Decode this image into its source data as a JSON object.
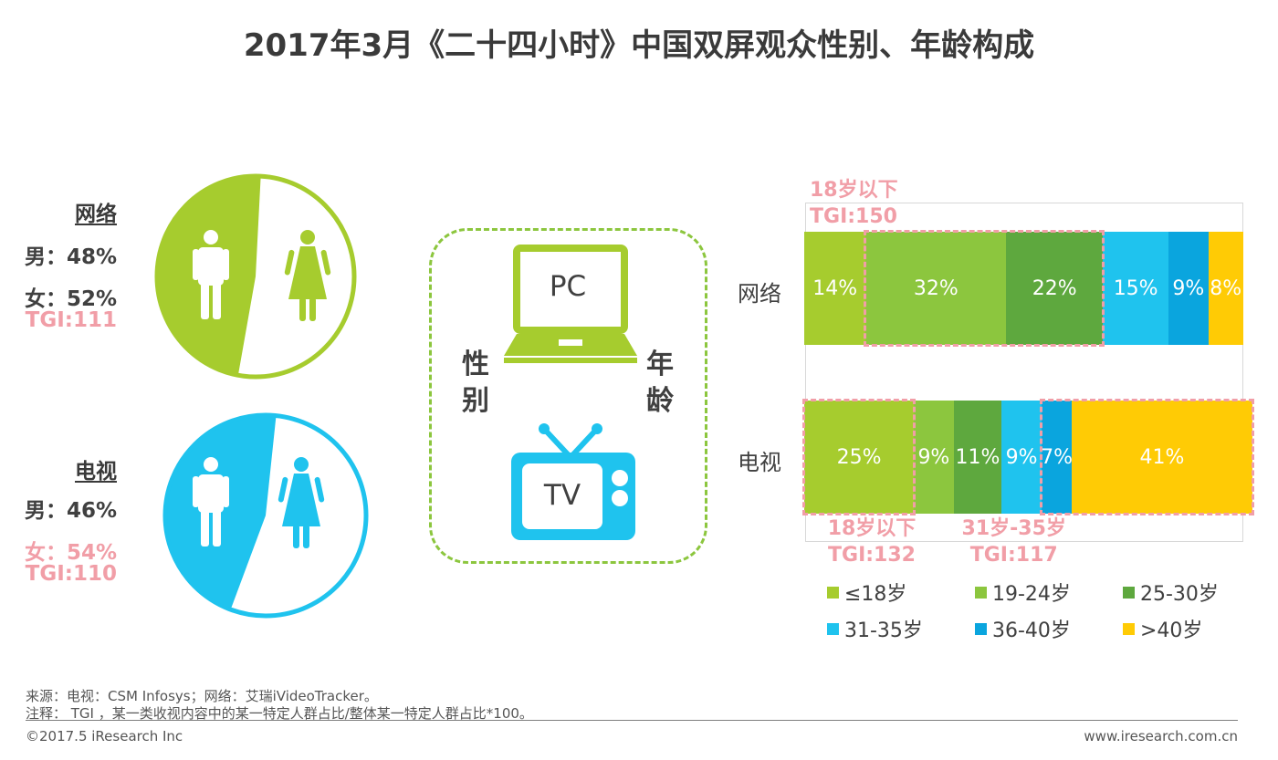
{
  "title": "2017年3月《二十四小时》中国双屏观众性别、年龄构成",
  "colors": {
    "age_18": "#a6cc2e",
    "age_19_24": "#8cc63e",
    "age_25_30": "#5ea83e",
    "age_31_35": "#1fc3ee",
    "age_36_40": "#0aa5de",
    "age_40_plus": "#ffcb05",
    "highlight": "#f19ea7",
    "web_pie": "#a6cc2e",
    "tv_pie": "#1fc3ee"
  },
  "gender": {
    "web": {
      "title": "网络",
      "male": "男：48%",
      "female": "女：52%",
      "tgi": "TGI:111",
      "male_pct": 48
    },
    "tv": {
      "title": "电视",
      "male": "男：46%",
      "female": "女：54%",
      "tgi": "TGI:110",
      "male_pct": 46
    }
  },
  "center": {
    "left_label": [
      "性",
      "别"
    ],
    "right_label": [
      "年",
      "龄"
    ],
    "pc": "PC",
    "tv": "TV"
  },
  "chart_data": {
    "type": "bar",
    "orientation": "horizontal",
    "stacked": true,
    "categories": [
      "网络",
      "电视"
    ],
    "series": [
      {
        "name": "≤18岁",
        "values": [
          14,
          25
        ],
        "labels": [
          "14%",
          "25%"
        ]
      },
      {
        "name": "19-24岁",
        "values": [
          32,
          9
        ],
        "labels": [
          "32%",
          "9%"
        ]
      },
      {
        "name": "25-30岁",
        "values": [
          22,
          11
        ],
        "labels": [
          "22%",
          "11%"
        ]
      },
      {
        "name": "31-35岁",
        "values": [
          15,
          9
        ],
        "labels": [
          "15%",
          "9%"
        ]
      },
      {
        "name": "36-40岁",
        "values": [
          9,
          7
        ],
        "labels": [
          "9%",
          "7%"
        ]
      },
      {
        "name": ">40岁",
        "values": [
          8,
          41
        ],
        "labels": [
          "8%",
          "41%"
        ]
      }
    ],
    "annotations": [
      {
        "row": 0,
        "from": 1,
        "to": 2,
        "line1": "18岁以下",
        "line2": "TGI:150"
      },
      {
        "row": 1,
        "from": 0,
        "to": 0,
        "line1": "18岁以下",
        "line2": "TGI:132"
      },
      {
        "row": 1,
        "from": 4,
        "to": 5,
        "line1": "31岁-35岁",
        "line2": "TGI:117"
      }
    ],
    "legend_position": "bottom"
  },
  "footer": {
    "source": "来源：电视：CSM Infosys；网络：艾瑞iVideoTracker。",
    "note": "注释： TGI ，某一类收视内容中的某一特定人群占比/整体某一特定人群占比*100。",
    "copyright": "©2017.5 iResearch Inc",
    "website": "www.iresearch.com.cn"
  }
}
